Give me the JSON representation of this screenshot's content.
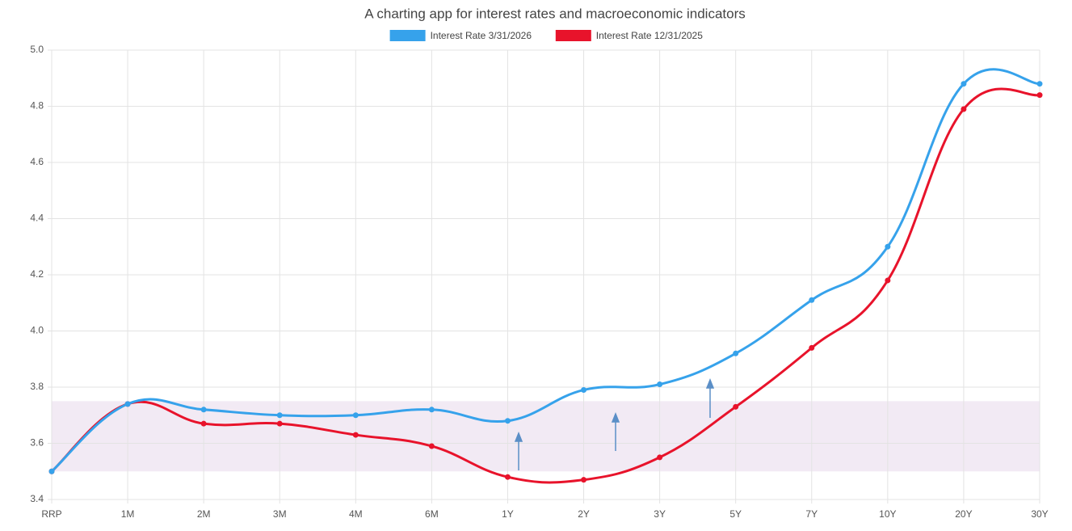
{
  "chart_data": {
    "type": "line",
    "title": "A charting app for interest rates and macroeconomic indicators",
    "categories": [
      "RRP",
      "1M",
      "2M",
      "3M",
      "4M",
      "6M",
      "1Y",
      "2Y",
      "3Y",
      "5Y",
      "7Y",
      "10Y",
      "20Y",
      "30Y"
    ],
    "series": [
      {
        "name": "Interest Rate 3/31/2026",
        "color": "#36a2eb",
        "values": [
          3.5,
          3.74,
          3.72,
          3.7,
          3.7,
          3.72,
          3.68,
          3.79,
          3.81,
          3.92,
          4.11,
          4.3,
          4.88,
          4.88
        ]
      },
      {
        "name": "Interest Rate 12/31/2025",
        "color": "#e8132b",
        "values": [
          3.5,
          3.74,
          3.67,
          3.67,
          3.63,
          3.59,
          3.48,
          3.47,
          3.55,
          3.73,
          3.94,
          4.18,
          4.79,
          4.84
        ]
      }
    ],
    "band": [
      3.5,
      3.75
    ],
    "band_color": "#f2eaf4",
    "ylim": [
      3.4,
      5.0
    ],
    "yticks": [
      3.4,
      3.6,
      3.8,
      {
        "value": 4,
        "label": "4.0"
      },
      4.2,
      4.4,
      4.6,
      4.8,
      {
        "value": 5,
        "label": "5.0"
      }
    ],
    "grid": true,
    "legend": "top"
  }
}
